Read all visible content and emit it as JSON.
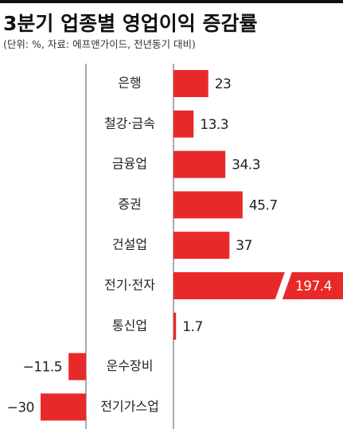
{
  "chart_data": {
    "type": "bar",
    "orientation": "horizontal",
    "title": "3분기 업종별 영업이익 증감률",
    "subtitle": "(단위: %, 자료: 에프앤가이드, 전년동기 대비)",
    "categories": [
      "은행",
      "철강·금속",
      "금융업",
      "증권",
      "건설업",
      "전기·전자",
      "통신업",
      "운수장비",
      "전기가스업"
    ],
    "values": [
      23,
      13.3,
      34.3,
      45.7,
      37,
      197.4,
      1.7,
      -11.5,
      -30
    ],
    "value_labels": [
      "23",
      "13.3",
      "34.3",
      "45.7",
      "37",
      "197.4",
      "1.7",
      "−11.5",
      "−30"
    ],
    "color": "#e8292a"
  }
}
